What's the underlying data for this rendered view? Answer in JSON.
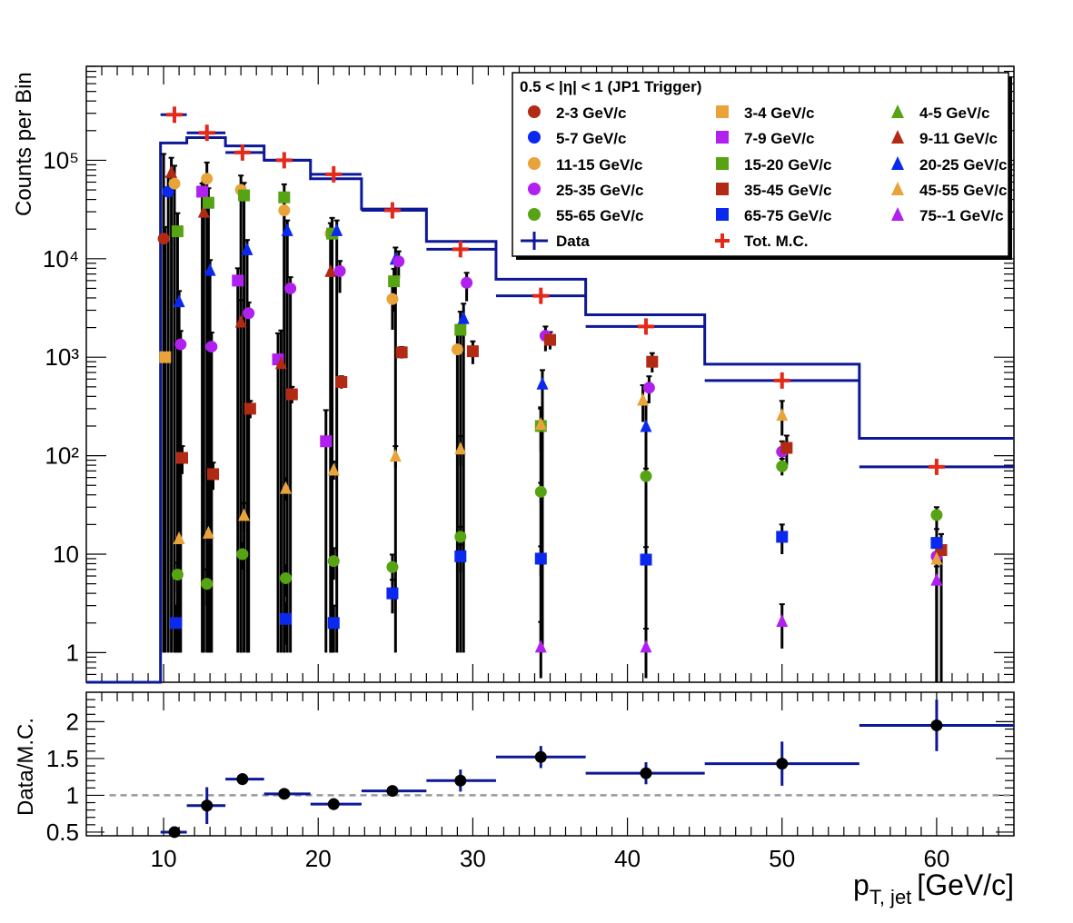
{
  "chart_data": [
    {
      "type": "scatter",
      "panel": "main",
      "ylabel": "Counts per Bin",
      "yscale": "log",
      "ylim": [
        0.5,
        900000
      ],
      "xlim": [
        5,
        65
      ],
      "y_tick_labels": [
        "1",
        "10",
        "10²",
        "10³",
        "10⁴",
        "10⁵"
      ],
      "y_tick_values": [
        1,
        10,
        100,
        1000,
        10000,
        100000
      ],
      "legend_title": "0.5 < |η| < 1 (JP1 Trigger)",
      "legend_position": "top-right",
      "data_hist": {
        "name": "Data",
        "bins": [
          [
            5,
            9.8,
            0.5
          ],
          [
            9.8,
            11.5,
            150000
          ],
          [
            11.5,
            14,
            170000
          ],
          [
            14,
            16.5,
            140000
          ],
          [
            16.5,
            19.5,
            100000
          ],
          [
            19.5,
            22.8,
            65000
          ],
          [
            22.8,
            27,
            32000
          ],
          [
            27,
            31.5,
            15000
          ],
          [
            31.5,
            37.3,
            6200
          ],
          [
            37.3,
            45,
            2700
          ],
          [
            45,
            55,
            850
          ],
          [
            55,
            65,
            150
          ]
        ]
      },
      "mc_hist_bins": [
        [
          9.8,
          11.5,
          290000
        ],
        [
          11.5,
          14,
          190000
        ],
        [
          14,
          16.5,
          120000
        ],
        [
          16.5,
          19.5,
          100000
        ],
        [
          19.5,
          22.8,
          72000
        ],
        [
          22.8,
          27,
          31000
        ],
        [
          27,
          31.5,
          12500
        ],
        [
          31.5,
          37.3,
          4200
        ],
        [
          37.3,
          45,
          2050
        ],
        [
          45,
          55,
          580
        ],
        [
          55,
          65,
          77
        ]
      ],
      "mc_total": {
        "name": "Tot. M.C.",
        "x": [
          10.7,
          12.8,
          15.1,
          17.8,
          21.0,
          24.8,
          29.2,
          34.4,
          41.2,
          50.0,
          60.0
        ],
        "y": [
          290000,
          190000,
          120000,
          100000,
          72000,
          31000,
          12500,
          4200,
          2050,
          580,
          77
        ]
      },
      "series": [
        {
          "name": "2-3 GeV/c",
          "color": "#b22a14",
          "marker": "circle",
          "x": [
            10.0
          ],
          "y": [
            16000
          ],
          "yerr_low": [
            15999
          ],
          "yerr_high": [
            100000
          ]
        },
        {
          "name": "3-4 GeV/c",
          "color": "#e8a33a",
          "marker": "square",
          "x": [
            10.1
          ],
          "y": [
            1000
          ],
          "yerr_low": [
            999
          ],
          "yerr_high": [
            20000
          ]
        },
        {
          "name": "4-5 GeV/c",
          "color": "#56a313",
          "marker": "triangle",
          "x": [],
          "y": []
        },
        {
          "name": "5-7 GeV/c",
          "color": "#0a28ee",
          "marker": "circle",
          "x": [
            10.3
          ],
          "y": [
            48000
          ],
          "yerr_low": [
            47999
          ],
          "yerr_high": [
            20000
          ]
        },
        {
          "name": "7-9 GeV/c",
          "color": "#b020ee",
          "marker": "square",
          "x": [
            12.5,
            14.8,
            17.4,
            20.5
          ],
          "y": [
            48000,
            6000,
            950,
            140
          ],
          "yerr_low": [
            47999,
            5999,
            949,
            139
          ],
          "yerr_high": [
            10000,
            2000,
            800,
            150
          ]
        },
        {
          "name": "9-11 GeV/c",
          "color": "#b22a14",
          "marker": "triangle",
          "x": [
            10.5,
            12.6,
            15.0,
            17.6,
            20.8
          ],
          "y": [
            76000,
            30000,
            2300,
            870,
            7500
          ],
          "yerr_low": [
            75999,
            29999,
            2299,
            869,
            7499
          ],
          "yerr_high": [
            30000,
            30000,
            1500,
            1000,
            10000
          ]
        },
        {
          "name": "11-15 GeV/c",
          "color": "#e8a33a",
          "marker": "circle",
          "x": [
            10.7,
            12.8,
            15.0,
            17.8,
            20.8,
            24.8,
            29.0
          ],
          "y": [
            58000,
            65000,
            50000,
            31000,
            18000,
            3900,
            1200
          ],
          "yerr_low": [
            57999,
            64999,
            49999,
            30999,
            17999,
            2000,
            1199
          ],
          "yerr_high": [
            30000,
            30000,
            20000,
            15000,
            5000,
            1500,
            500
          ]
        },
        {
          "name": "15-20 GeV/c",
          "color": "#56a313",
          "marker": "square",
          "x": [
            10.9,
            12.9,
            15.2,
            17.8,
            20.9,
            24.9,
            29.2,
            34.4
          ],
          "y": [
            19000,
            37000,
            44000,
            42000,
            18000,
            5900,
            1900,
            200
          ],
          "yerr_low": [
            18999,
            36999,
            43999,
            41999,
            17999,
            3000,
            1899,
            199
          ],
          "yerr_high": [
            10000,
            15000,
            15000,
            15000,
            8000,
            2000,
            1000,
            100
          ]
        },
        {
          "name": "20-25 GeV/c",
          "color": "#0a28ee",
          "marker": "triangle",
          "x": [
            11.0,
            13.0,
            15.4,
            18.0,
            21.2,
            25.0,
            29.4,
            34.5,
            41.2
          ],
          "y": [
            3700,
            7700,
            12500,
            19500,
            19500,
            10000,
            2500,
            540,
            200
          ],
          "yerr_low": [
            3699,
            7699,
            12499,
            19499,
            19499,
            9999,
            2499,
            539,
            199
          ],
          "yerr_high": [
            1000,
            2000,
            3000,
            5000,
            5000,
            3000,
            1000,
            200,
            150
          ]
        },
        {
          "name": "25-35 GeV/c",
          "color": "#b020ee",
          "marker": "circle",
          "x": [
            11.1,
            13.1,
            15.5,
            18.2,
            21.4,
            25.2,
            29.6,
            34.7,
            41.4,
            50.0,
            60.0
          ],
          "y": [
            1350,
            1280,
            2800,
            5000,
            7500,
            9400,
            5700,
            1650,
            490,
            110,
            9.5
          ],
          "yerr_low": [
            1349,
            1279,
            2799,
            4999,
            3000,
            3000,
            2000,
            500,
            150,
            30,
            9.4
          ],
          "yerr_high": [
            500,
            500,
            800,
            1500,
            2000,
            2500,
            1500,
            400,
            150,
            30,
            5
          ]
        },
        {
          "name": "35-45 GeV/c",
          "color": "#b22a14",
          "marker": "square",
          "x": [
            11.2,
            13.2,
            15.6,
            18.3,
            21.5,
            25.4,
            30.0,
            35.0,
            41.6,
            50.3,
            60.3
          ],
          "y": [
            95,
            65,
            300,
            420,
            560,
            1120,
            1150,
            1500,
            900,
            120,
            11
          ],
          "yerr_low": [
            30,
            20,
            60,
            80,
            80,
            150,
            300,
            300,
            200,
            40,
            10.9
          ],
          "yerr_high": [
            30,
            20,
            60,
            80,
            80,
            150,
            300,
            300,
            200,
            40,
            5
          ]
        },
        {
          "name": "45-55 GeV/c",
          "color": "#e8a33a",
          "marker": "triangle",
          "x": [
            11.0,
            12.9,
            15.2,
            17.9,
            21.0,
            25.0,
            29.2,
            34.4,
            41.0,
            50.0,
            60.0
          ],
          "y": [
            14.5,
            16.5,
            25,
            47,
            72,
            100,
            118,
            210,
            370,
            260,
            9
          ],
          "yerr_low": [
            5,
            6,
            8,
            12,
            15,
            25,
            40,
            100,
            150,
            100,
            8.9
          ],
          "yerr_high": [
            5,
            6,
            8,
            12,
            15,
            25,
            40,
            100,
            150,
            100,
            5
          ]
        },
        {
          "name": "55-65 GeV/c",
          "color": "#56a313",
          "marker": "circle",
          "x": [
            10.9,
            12.8,
            15.1,
            17.9,
            21.0,
            24.8,
            29.2,
            34.4,
            41.2,
            50.0,
            60.0
          ],
          "y": [
            6.2,
            5,
            10,
            5.7,
            8.5,
            7.4,
            15,
            43,
            62,
            78,
            25
          ],
          "yerr_low": [
            2,
            2,
            3,
            2,
            3,
            2.5,
            4,
            10,
            12,
            15,
            8
          ],
          "yerr_high": [
            2,
            2,
            3,
            2,
            3,
            2.5,
            4,
            10,
            12,
            15,
            5
          ]
        },
        {
          "name": "65-75 GeV/c",
          "color": "#0a28ee",
          "marker": "square",
          "x": [
            10.8,
            17.9,
            21.0,
            24.8,
            29.2,
            34.4,
            41.2,
            50.0,
            60.0
          ],
          "y": [
            2,
            2.2,
            2,
            4,
            9.5,
            9,
            8.8,
            15,
            13
          ],
          "yerr_low": [
            1,
            1,
            1,
            1.5,
            3,
            3,
            3,
            5,
            12.9
          ],
          "yerr_high": [
            1,
            1,
            1,
            1.5,
            3,
            3,
            3,
            5,
            5
          ]
        },
        {
          "name": "75--1 GeV/c",
          "color": "#b020ee",
          "marker": "triangle",
          "x": [
            34.4,
            41.2,
            50.0,
            60.0
          ],
          "y": [
            1.15,
            1.15,
            2.1,
            5.5
          ],
          "yerr_low": [
            0.6,
            0.6,
            1,
            2
          ],
          "yerr_high": [
            0.9,
            0.6,
            1,
            2
          ]
        }
      ]
    },
    {
      "type": "scatter",
      "panel": "ratio",
      "ylabel": "Data/M.C.",
      "xlabel_main": "p",
      "xlabel_sub": "T, jet",
      "xlabel_unit": "[GeV/c]",
      "xlim": [
        5,
        65
      ],
      "ylim": [
        0.45,
        2.4
      ],
      "x_tick_labels": [
        "10",
        "20",
        "30",
        "40",
        "50",
        "60"
      ],
      "y_tick_labels": [
        "0.5",
        "1",
        "1.5",
        "2"
      ],
      "reference_line": 1,
      "points": [
        {
          "x": 10.7,
          "y": 0.5,
          "xlo": 9.8,
          "xhi": 11.5,
          "err": 0.05
        },
        {
          "x": 12.8,
          "y": 0.86,
          "xlo": 11.5,
          "xhi": 14.0,
          "err": 0.25
        },
        {
          "x": 15.1,
          "y": 1.22,
          "xlo": 14.0,
          "xhi": 16.5,
          "err": 0.08
        },
        {
          "x": 17.8,
          "y": 1.02,
          "xlo": 16.5,
          "xhi": 19.5,
          "err": 0.05
        },
        {
          "x": 21.0,
          "y": 0.88,
          "xlo": 19.5,
          "xhi": 22.8,
          "err": 0.08
        },
        {
          "x": 24.8,
          "y": 1.06,
          "xlo": 22.8,
          "xhi": 27.0,
          "err": 0.05
        },
        {
          "x": 29.2,
          "y": 1.2,
          "xlo": 27.0,
          "xhi": 31.5,
          "err": 0.15
        },
        {
          "x": 34.4,
          "y": 1.52,
          "xlo": 31.5,
          "xhi": 37.3,
          "err": 0.15
        },
        {
          "x": 41.2,
          "y": 1.3,
          "xlo": 37.3,
          "xhi": 45.0,
          "err": 0.15
        },
        {
          "x": 50.0,
          "y": 1.43,
          "xlo": 45.0,
          "xhi": 55.0,
          "err": 0.3
        },
        {
          "x": 60.0,
          "y": 1.95,
          "xlo": 55.0,
          "xhi": 65.0,
          "err": 0.35
        }
      ]
    }
  ]
}
